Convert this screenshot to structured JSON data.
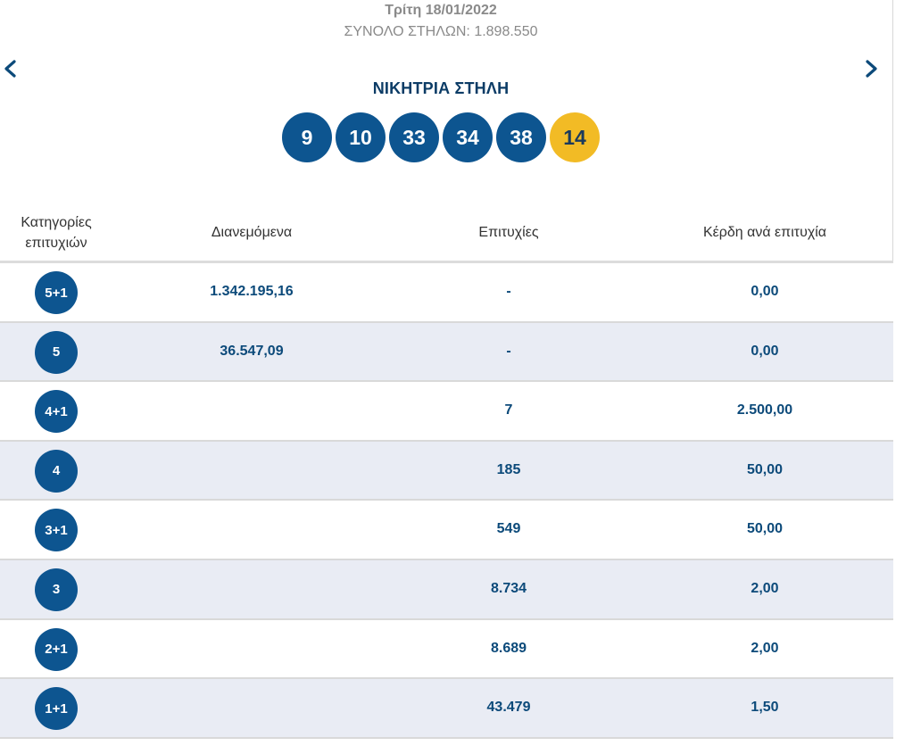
{
  "draw": {
    "date": "Τρίτη 18/01/2022",
    "total_columns": "ΣΥΝΟΛΟ ΣΤΗΛΩΝ: 1.898.550",
    "winning_title": "ΝΙΚΗΤΡΙΑ ΣΤΗΛΗ",
    "numbers": [
      "9",
      "10",
      "33",
      "34",
      "38"
    ],
    "bonus": "14"
  },
  "icons": {
    "prev": "chevron-left-icon",
    "next": "chevron-right-icon"
  },
  "colors": {
    "ball": "#0d5590",
    "bonus_ball": "#f2bb25",
    "alt_row": "#e9ecf4",
    "text_value": "#0c4a7a"
  },
  "table": {
    "headers": {
      "category": "Κατηγορίες επιτυχιών",
      "distributed": "Διανεμόμενα",
      "wins": "Επιτυχίες",
      "gain": "Κέρδη ανά επιτυχία"
    },
    "rows": [
      {
        "category": "5+1",
        "distributed": "1.342.195,16",
        "wins": "-",
        "gain": "0,00"
      },
      {
        "category": "5",
        "distributed": "36.547,09",
        "wins": "-",
        "gain": "0,00"
      },
      {
        "category": "4+1",
        "distributed": "",
        "wins": "7",
        "gain": "2.500,00"
      },
      {
        "category": "4",
        "distributed": "",
        "wins": "185",
        "gain": "50,00"
      },
      {
        "category": "3+1",
        "distributed": "",
        "wins": "549",
        "gain": "50,00"
      },
      {
        "category": "3",
        "distributed": "",
        "wins": "8.734",
        "gain": "2,00"
      },
      {
        "category": "2+1",
        "distributed": "",
        "wins": "8.689",
        "gain": "2,00"
      },
      {
        "category": "1+1",
        "distributed": "",
        "wins": "43.479",
        "gain": "1,50"
      }
    ]
  }
}
